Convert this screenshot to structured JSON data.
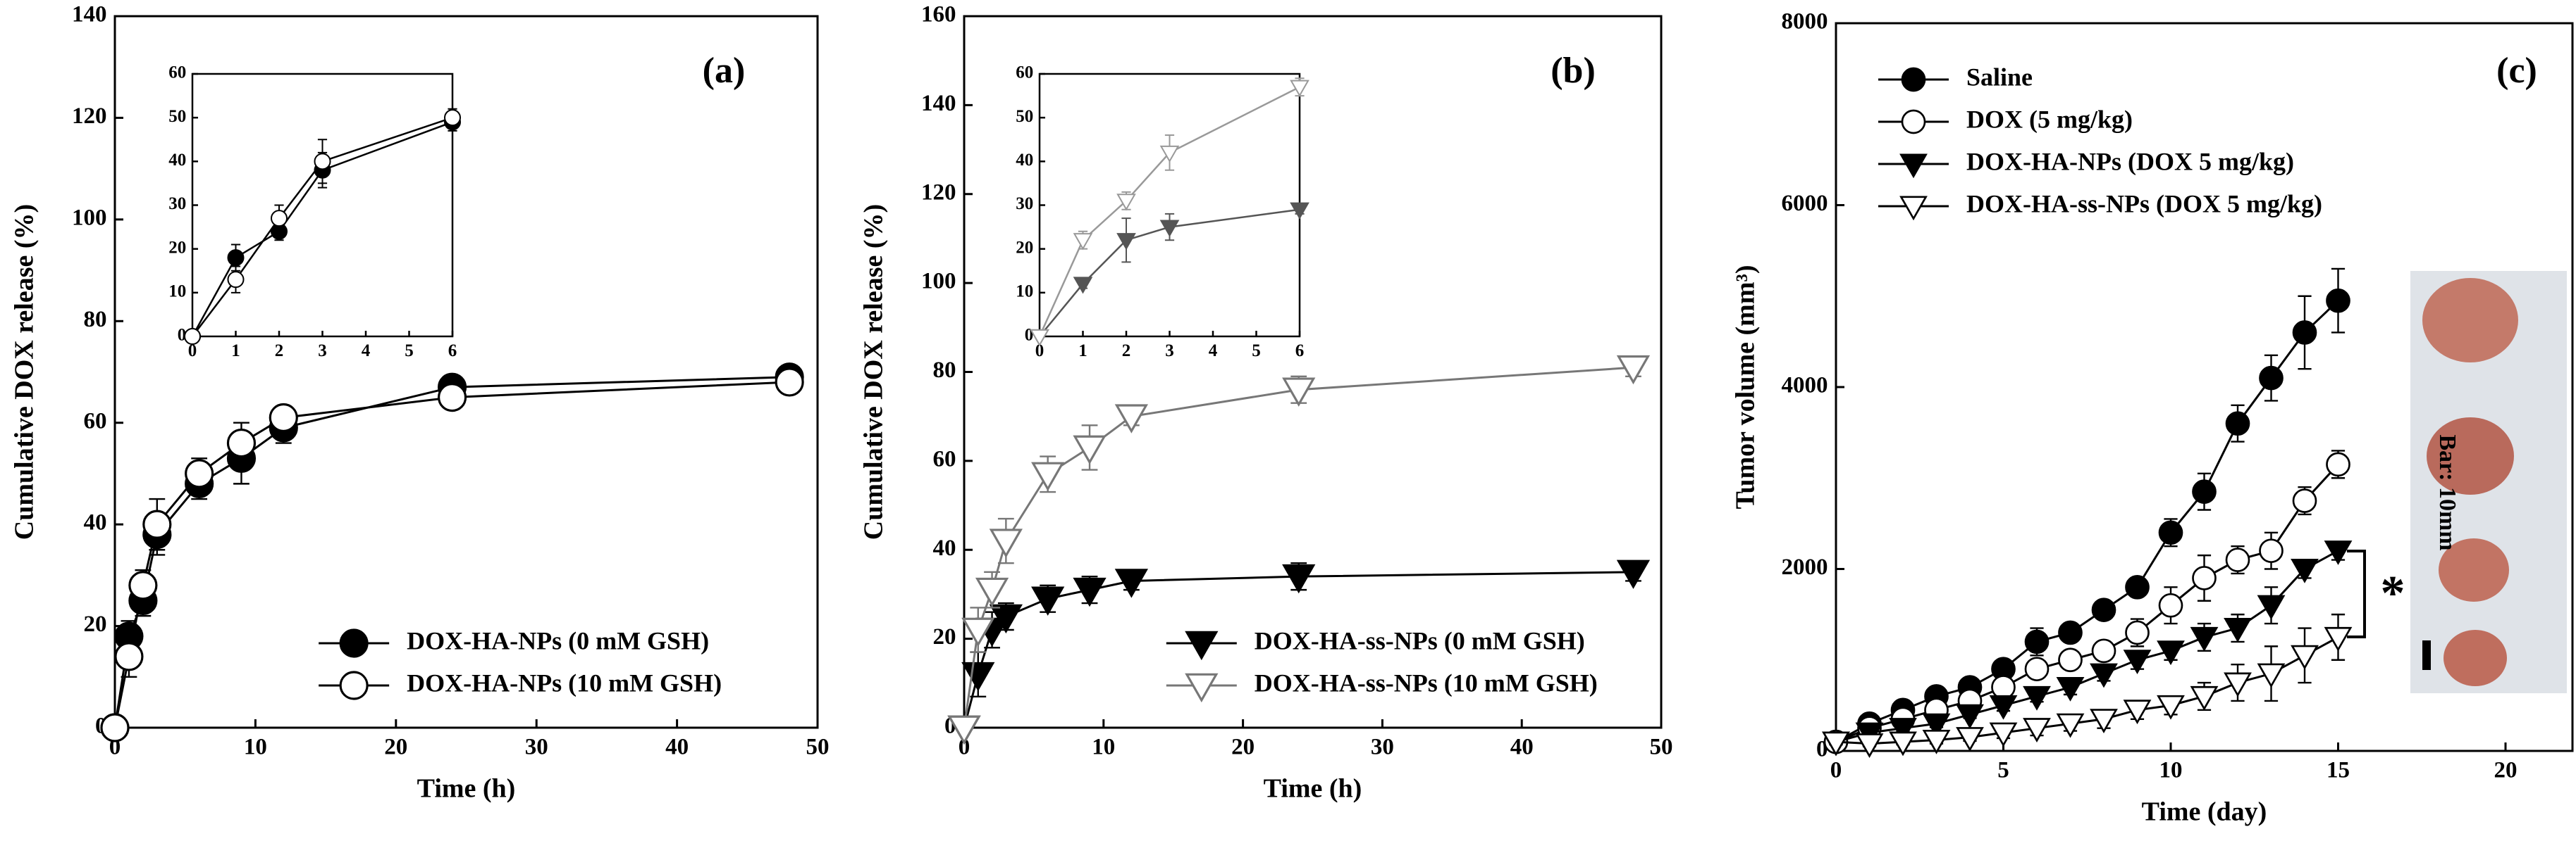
{
  "chart_data": [
    {
      "type": "line",
      "panel_label": "(a)",
      "x_label": "Time (h)",
      "y_label": "Cumulative DOX release (%)",
      "x": [
        0,
        1,
        2,
        3,
        6,
        9,
        12,
        24,
        48
      ],
      "xlim": [
        0,
        50
      ],
      "xticks": [
        0,
        10,
        20,
        30,
        40,
        50
      ],
      "ylim": [
        0,
        140
      ],
      "yticks": [
        0,
        20,
        40,
        60,
        80,
        100,
        120,
        140
      ],
      "legend": "lower right",
      "series": [
        {
          "name": "DOX-HA-NPs (0 mM GSH)",
          "color": "#000000",
          "marker": "circle-filled",
          "values": [
            0,
            18,
            25,
            38,
            48,
            53,
            59,
            67,
            69
          ],
          "errors": [
            0,
            3,
            3,
            4,
            3,
            5,
            3,
            2,
            1
          ]
        },
        {
          "name": "DOX-HA-NPs (10 mM GSH)",
          "color": "#000000",
          "marker": "circle-open",
          "values": [
            0,
            14,
            28,
            40,
            50,
            56,
            61,
            65,
            68
          ],
          "errors": [
            0,
            4,
            3,
            5,
            3,
            4,
            2,
            1,
            1
          ]
        }
      ]
    },
    {
      "type": "line",
      "x": [
        0,
        1,
        2,
        3,
        6
      ],
      "xlim": [
        0,
        6
      ],
      "xticks": [
        0,
        1,
        2,
        3,
        4,
        5,
        6
      ],
      "ylim": [
        0,
        60
      ],
      "yticks": [
        0,
        10,
        20,
        30,
        40,
        50,
        60
      ],
      "series": [
        {
          "color": "#000000",
          "marker": "circle-filled",
          "values": [
            0,
            18,
            24,
            38,
            49
          ],
          "errors": [
            0,
            3,
            2,
            4,
            2
          ]
        },
        {
          "color": "#000000",
          "marker": "circle-open",
          "values": [
            0,
            13,
            27,
            40,
            50
          ],
          "errors": [
            0,
            3,
            3,
            5,
            2
          ]
        }
      ]
    },
    {
      "type": "line",
      "panel_label": "(b)",
      "x_label": "Time (h)",
      "y_label": "Cumulative DOX release (%)",
      "x": [
        0,
        1,
        2,
        3,
        6,
        9,
        12,
        24,
        48
      ],
      "xlim": [
        0,
        50
      ],
      "xticks": [
        0,
        10,
        20,
        30,
        40,
        50
      ],
      "ylim": [
        0,
        160
      ],
      "yticks": [
        0,
        20,
        40,
        60,
        80,
        100,
        120,
        140,
        160
      ],
      "legend": "lower right",
      "series": [
        {
          "name": "DOX-HA-ss-NPs (0 mM GSH)",
          "color": "#000000",
          "marker": "triangle-filled",
          "values": [
            0,
            12,
            22,
            25,
            29,
            31,
            33,
            34,
            35
          ],
          "errors": [
            0,
            5,
            4,
            3,
            3,
            3,
            2,
            3,
            2
          ]
        },
        {
          "name": "DOX-HA-ss-NPs (10 mM GSH)",
          "color": "#777777",
          "marker": "triangle-open",
          "values": [
            0,
            22,
            31,
            42,
            57,
            63,
            70,
            76,
            81
          ],
          "errors": [
            0,
            5,
            4,
            5,
            4,
            5,
            2,
            3,
            2
          ]
        }
      ]
    },
    {
      "type": "line",
      "x": [
        0,
        1,
        2,
        3,
        6
      ],
      "xlim": [
        0,
        6
      ],
      "xticks": [
        0,
        1,
        2,
        3,
        4,
        5,
        6
      ],
      "ylim": [
        0,
        60
      ],
      "yticks": [
        0,
        10,
        20,
        30,
        40,
        50,
        60
      ],
      "series": [
        {
          "color": "#555555",
          "marker": "triangle-filled",
          "values": [
            0,
            12,
            22,
            25,
            29
          ],
          "errors": [
            0,
            1,
            5,
            3,
            1
          ]
        },
        {
          "color": "#999999",
          "marker": "triangle-open",
          "values": [
            0,
            22,
            31,
            42,
            57
          ],
          "errors": [
            0,
            2,
            2,
            4,
            2
          ]
        }
      ]
    },
    {
      "type": "line",
      "panel_label": "(c)",
      "x_label": "Time (day)",
      "y_label": "Tumor volume (mm³)",
      "annotations": [
        "*",
        "Bar: 10mm"
      ],
      "x": [
        0,
        1,
        2,
        3,
        4,
        5,
        6,
        7,
        8,
        9,
        10,
        11,
        12,
        13,
        14,
        15
      ],
      "xlim": [
        0,
        22
      ],
      "xticks": [
        0,
        5,
        10,
        15,
        20
      ],
      "ylim": [
        0,
        8000
      ],
      "yticks": [
        0,
        2000,
        4000,
        6000,
        8000
      ],
      "legend": "upper left",
      "series": [
        {
          "name": "Saline",
          "color": "#000000",
          "marker": "circle-filled",
          "values": [
            100,
            300,
            450,
            600,
            700,
            900,
            1200,
            1300,
            1550,
            1800,
            2400,
            2850,
            3600,
            4100,
            4600,
            4950
          ],
          "errors": [
            30,
            50,
            50,
            60,
            60,
            80,
            150,
            100,
            100,
            100,
            150,
            200,
            200,
            250,
            400,
            350
          ]
        },
        {
          "name": "DOX (5 mg/kg)",
          "color": "#000000",
          "marker": "circle-open",
          "values": [
            100,
            250,
            350,
            450,
            550,
            700,
            900,
            1000,
            1100,
            1300,
            1600,
            1900,
            2100,
            2200,
            2750,
            3150
          ],
          "errors": [
            30,
            40,
            50,
            50,
            60,
            80,
            100,
            100,
            100,
            150,
            200,
            250,
            150,
            200,
            150,
            150
          ]
        },
        {
          "name": "DOX-HA-NPs (DOX 5 mg/kg)",
          "color": "#000000",
          "marker": "triangle-filled",
          "values": [
            100,
            200,
            250,
            300,
            400,
            500,
            600,
            700,
            850,
            1000,
            1100,
            1250,
            1350,
            1600,
            2000,
            2200
          ],
          "errors": [
            30,
            30,
            30,
            40,
            40,
            60,
            60,
            80,
            80,
            100,
            100,
            150,
            150,
            200,
            100,
            100
          ]
        },
        {
          "name": "DOX-HA-ss-NPs (DOX 5 mg/kg)",
          "color": "#000000",
          "marker": "triangle-open",
          "values": [
            100,
            80,
            100,
            120,
            150,
            200,
            250,
            300,
            350,
            450,
            500,
            600,
            750,
            850,
            1050,
            1250
          ],
          "errors": [
            30,
            30,
            30,
            40,
            40,
            60,
            80,
            80,
            100,
            100,
            100,
            150,
            200,
            300,
            300,
            250
          ]
        }
      ]
    }
  ]
}
